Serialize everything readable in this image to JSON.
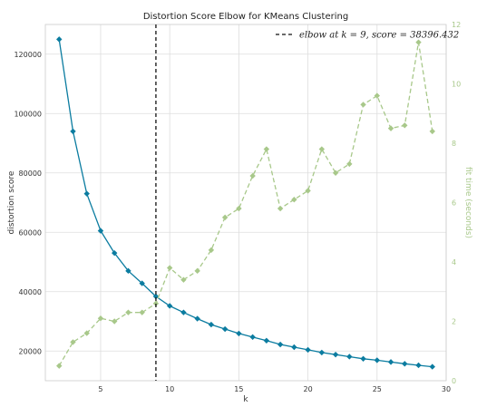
{
  "chart_data": {
    "type": "line",
    "title": "Distortion Score Elbow for KMeans Clustering",
    "xlabel": "k",
    "ylabel": "distortion score",
    "y2label": "fit time (seconds)",
    "xlim": [
      1,
      30
    ],
    "ylim": [
      10000,
      130000
    ],
    "y2lim": [
      0,
      12
    ],
    "xticks": [
      5,
      10,
      15,
      20,
      25,
      30
    ],
    "yticks": [
      20000,
      40000,
      60000,
      80000,
      100000,
      120000
    ],
    "y2ticks": [
      0,
      2,
      4,
      6,
      8,
      10,
      12
    ],
    "grid": true,
    "elbow": {
      "k": 9,
      "legend_label": "elbow at k = 9, score = 38396.432"
    },
    "series": [
      {
        "axis": "left",
        "color": "#0b7ca0",
        "style": "solid",
        "marker": "diamond",
        "x": [
          2,
          3,
          4,
          5,
          6,
          7,
          8,
          9,
          10,
          11,
          12,
          13,
          14,
          15,
          16,
          17,
          18,
          19,
          20,
          21,
          22,
          23,
          24,
          25,
          26,
          27,
          28,
          29
        ],
        "values": [
          125000,
          94000,
          73000,
          60500,
          53000,
          47000,
          42800,
          38396,
          35200,
          33000,
          30900,
          28900,
          27400,
          25900,
          24700,
          23500,
          22200,
          21300,
          20400,
          19500,
          18800,
          18100,
          17400,
          16900,
          16300,
          15700,
          15200,
          14700
        ]
      },
      {
        "axis": "right",
        "color": "#a8c88a",
        "style": "dashed",
        "marker": "diamond",
        "x": [
          2,
          3,
          4,
          5,
          6,
          7,
          8,
          9,
          10,
          11,
          12,
          13,
          14,
          15,
          16,
          17,
          18,
          19,
          20,
          21,
          22,
          23,
          24,
          25,
          26,
          27,
          28,
          29
        ],
        "values": [
          0.5,
          1.3,
          1.6,
          2.1,
          2.0,
          2.3,
          2.3,
          2.6,
          3.8,
          3.4,
          3.7,
          4.4,
          5.5,
          5.8,
          6.9,
          7.8,
          5.8,
          6.1,
          6.4,
          7.8,
          7.0,
          7.3,
          9.3,
          9.6,
          8.5,
          8.6,
          11.4,
          8.4
        ]
      }
    ]
  }
}
